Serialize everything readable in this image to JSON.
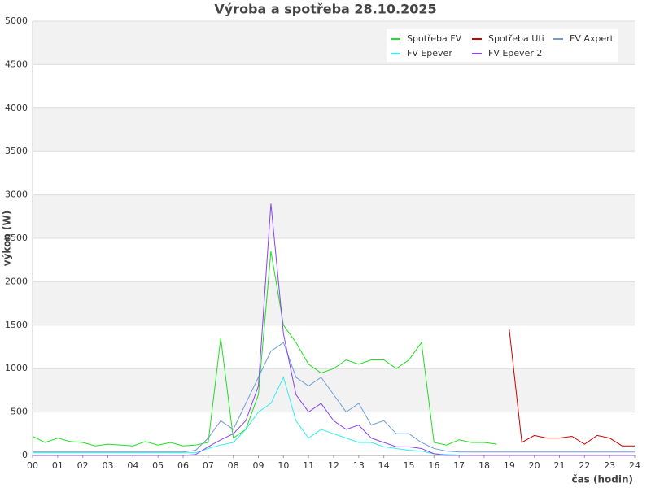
{
  "chart_data": {
    "type": "line",
    "title": "Výroba a spotřeba 28.10.2025",
    "x_label": "čas (hodin)",
    "y_label": "výkon (W)",
    "x": [
      0,
      0.5,
      1,
      1.5,
      2,
      2.5,
      3,
      3.5,
      4,
      4.5,
      5,
      5.5,
      6,
      6.5,
      7,
      7.5,
      8,
      8.5,
      9,
      9.5,
      10,
      10.5,
      11,
      11.5,
      12,
      12.5,
      13,
      13.5,
      14,
      14.5,
      15,
      15.5,
      16,
      16.5,
      17,
      17.5,
      18,
      18.5,
      19,
      19.5,
      20,
      20.5,
      21,
      21.5,
      22,
      22.5,
      23,
      23.5,
      24
    ],
    "series": [
      {
        "name": "Spotřeba FV",
        "color": "#22dd22",
        "values": [
          220,
          150,
          200,
          160,
          150,
          110,
          130,
          120,
          110,
          160,
          120,
          150,
          110,
          120,
          150,
          1350,
          200,
          300,
          700,
          2350,
          1500,
          1300,
          1050,
          950,
          1000,
          1100,
          1050,
          1100,
          1100,
          1000,
          1100,
          1300,
          150,
          120,
          180,
          150,
          150,
          130,
          null,
          null,
          null,
          null,
          null,
          null,
          null,
          null,
          null,
          null,
          null
        ]
      },
      {
        "name": "Spotřeba Uti",
        "color": "#cc0000",
        "values": [
          null,
          null,
          null,
          null,
          null,
          null,
          null,
          null,
          null,
          null,
          null,
          null,
          null,
          null,
          null,
          null,
          null,
          null,
          null,
          null,
          null,
          null,
          null,
          null,
          null,
          null,
          null,
          null,
          null,
          null,
          null,
          null,
          null,
          null,
          null,
          null,
          null,
          null,
          1450,
          150,
          230,
          200,
          200,
          220,
          130,
          230,
          200,
          110,
          110
        ]
      },
      {
        "name": "FV Axpert",
        "color": "#6f9bd8",
        "values": [
          40,
          40,
          40,
          40,
          40,
          40,
          40,
          40,
          40,
          40,
          40,
          40,
          40,
          60,
          200,
          400,
          300,
          600,
          900,
          1200,
          1300,
          900,
          800,
          900,
          700,
          500,
          600,
          350,
          400,
          250,
          250,
          150,
          80,
          50,
          40,
          40,
          40,
          40,
          40,
          40,
          40,
          40,
          40,
          40,
          40,
          40,
          40,
          40,
          40
        ]
      },
      {
        "name": "FV Epever",
        "color": "#33eeee",
        "values": [
          30,
          30,
          30,
          30,
          30,
          30,
          30,
          30,
          30,
          30,
          30,
          30,
          30,
          30,
          80,
          120,
          150,
          300,
          500,
          600,
          900,
          400,
          200,
          300,
          250,
          200,
          150,
          150,
          100,
          80,
          60,
          50,
          20,
          10,
          5,
          0,
          0,
          0,
          0,
          0,
          0,
          0,
          0,
          0,
          0,
          0,
          0,
          0,
          0
        ]
      },
      {
        "name": "FV Epever 2",
        "color": "#8844ee",
        "values": [
          0,
          0,
          0,
          0,
          0,
          0,
          0,
          0,
          0,
          0,
          0,
          0,
          0,
          10,
          100,
          180,
          250,
          400,
          800,
          2900,
          1400,
          700,
          500,
          600,
          400,
          300,
          350,
          200,
          150,
          100,
          100,
          80,
          20,
          0,
          0,
          0,
          0,
          0,
          0,
          0,
          0,
          0,
          0,
          0,
          0,
          0,
          0,
          0,
          0
        ]
      }
    ],
    "xlim": [
      0,
      24
    ],
    "xticks": [
      {
        "value": 0,
        "label": "00"
      },
      {
        "value": 1,
        "label": "01"
      },
      {
        "value": 2,
        "label": "02"
      },
      {
        "value": 3,
        "label": "03"
      },
      {
        "value": 4,
        "label": "04"
      },
      {
        "value": 5,
        "label": "05"
      },
      {
        "value": 6,
        "label": "06"
      },
      {
        "value": 7,
        "label": "07"
      },
      {
        "value": 8,
        "label": "08"
      },
      {
        "value": 9,
        "label": "09"
      },
      {
        "value": 10,
        "label": "10"
      },
      {
        "value": 11,
        "label": "11"
      },
      {
        "value": 12,
        "label": "12"
      },
      {
        "value": 13,
        "label": "13"
      },
      {
        "value": 14,
        "label": "14"
      },
      {
        "value": 15,
        "label": "15"
      },
      {
        "value": 16,
        "label": "16"
      },
      {
        "value": 17,
        "label": "17"
      },
      {
        "value": 18,
        "label": "18"
      },
      {
        "value": 19,
        "label": "19"
      },
      {
        "value": 20,
        "label": "20"
      },
      {
        "value": 21,
        "label": "21"
      },
      {
        "value": 22,
        "label": "22"
      },
      {
        "value": 23,
        "label": "23"
      },
      {
        "value": 24,
        "label": "24"
      }
    ],
    "ylim": [
      0,
      5000
    ],
    "yticks": [
      0,
      500,
      1000,
      1500,
      2000,
      2500,
      3000,
      3500,
      4000,
      4500,
      5000
    ],
    "grid": true,
    "legend": "top-right"
  }
}
